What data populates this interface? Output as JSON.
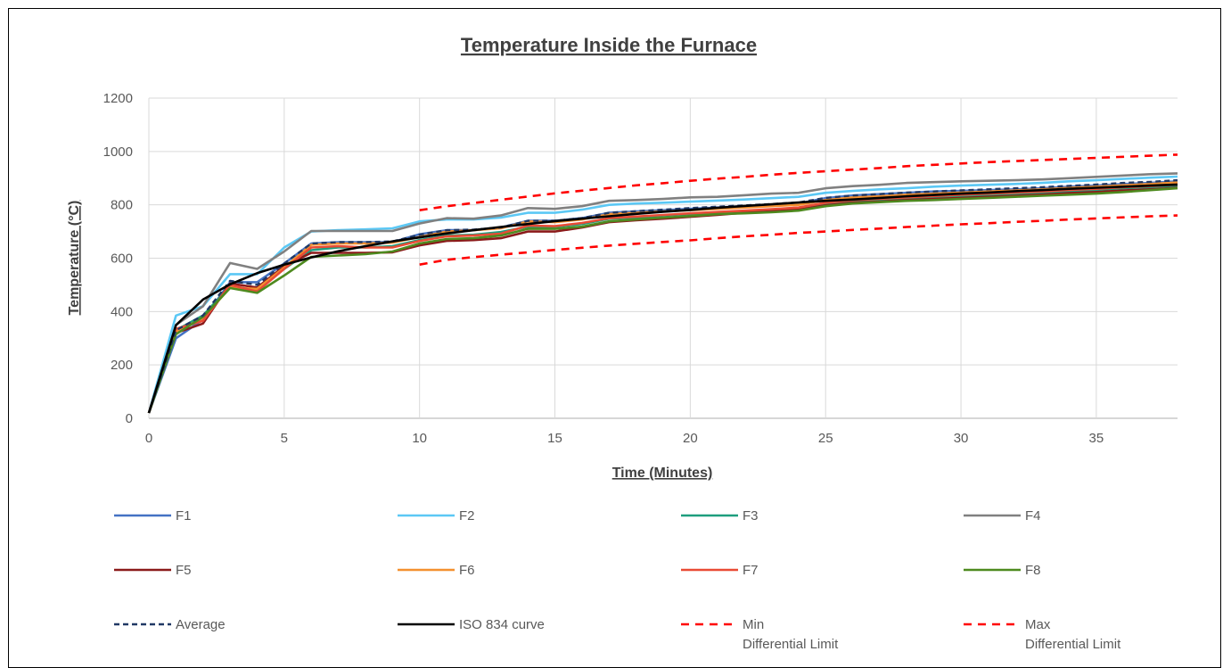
{
  "chart_data": {
    "type": "line",
    "title": "Temperature Inside the Furnace",
    "xlabel": "Time (Minutes)",
    "ylabel": "Temperature (°C)",
    "xlim": [
      0,
      38
    ],
    "ylim": [
      0,
      1200
    ],
    "x_ticks": [
      0,
      5,
      10,
      15,
      20,
      25,
      30,
      35
    ],
    "y_ticks": [
      0,
      200,
      400,
      600,
      800,
      1000,
      1200
    ],
    "grid": true,
    "legend_position": "bottom",
    "series": [
      {
        "name": "F1",
        "color": "#4472C4",
        "dash": "solid",
        "x": [
          0,
          1,
          2,
          3,
          4,
          5,
          6,
          7,
          8,
          9,
          10,
          11,
          12,
          13,
          14,
          15,
          16,
          17,
          18,
          19,
          20,
          21,
          22,
          23,
          24,
          25,
          26,
          27,
          28,
          29,
          30,
          31,
          32,
          33,
          34,
          35,
          36,
          37,
          38
        ],
        "y": [
          20,
          300,
          370,
          510,
          510,
          580,
          655,
          660,
          660,
          660,
          690,
          705,
          705,
          715,
          740,
          740,
          750,
          770,
          775,
          780,
          785,
          790,
          795,
          800,
          805,
          825,
          835,
          840,
          845,
          850,
          852,
          855,
          858,
          862,
          868,
          872,
          878,
          882,
          888
        ]
      },
      {
        "name": "F2",
        "color": "#5BC8F5",
        "dash": "solid",
        "x": [
          0,
          1,
          2,
          3,
          4,
          5,
          6,
          7,
          8,
          9,
          10,
          11,
          12,
          13,
          14,
          15,
          16,
          17,
          18,
          19,
          20,
          21,
          22,
          23,
          24,
          25,
          26,
          27,
          28,
          29,
          30,
          31,
          32,
          33,
          34,
          35,
          36,
          37,
          38
        ],
        "y": [
          20,
          385,
          420,
          540,
          540,
          640,
          700,
          705,
          708,
          712,
          738,
          745,
          745,
          752,
          770,
          770,
          782,
          800,
          805,
          808,
          812,
          816,
          820,
          825,
          830,
          845,
          852,
          858,
          862,
          868,
          872,
          875,
          878,
          882,
          888,
          892,
          897,
          902,
          906
        ]
      },
      {
        "name": "F3",
        "color": "#1E9E7E",
        "dash": "solid",
        "x": [
          0,
          1,
          2,
          3,
          4,
          5,
          6,
          7,
          8,
          9,
          10,
          11,
          12,
          13,
          14,
          15,
          16,
          17,
          18,
          19,
          20,
          21,
          22,
          23,
          24,
          25,
          26,
          27,
          28,
          29,
          30,
          31,
          32,
          33,
          34,
          35,
          36,
          37,
          38
        ],
        "y": [
          20,
          330,
          385,
          495,
          480,
          560,
          630,
          640,
          640,
          645,
          668,
          685,
          688,
          698,
          718,
          718,
          728,
          748,
          752,
          760,
          766,
          770,
          775,
          780,
          786,
          802,
          812,
          818,
          822,
          828,
          832,
          836,
          840,
          845,
          850,
          856,
          862,
          866,
          872
        ]
      },
      {
        "name": "F4",
        "color": "#808080",
        "dash": "solid",
        "x": [
          0,
          1,
          2,
          3,
          4,
          5,
          6,
          7,
          8,
          9,
          10,
          11,
          12,
          13,
          14,
          15,
          16,
          17,
          18,
          19,
          20,
          21,
          22,
          23,
          24,
          25,
          26,
          27,
          28,
          29,
          30,
          31,
          32,
          33,
          34,
          35,
          36,
          37,
          38
        ],
        "y": [
          20,
          350,
          420,
          582,
          560,
          625,
          702,
          702,
          702,
          702,
          730,
          750,
          748,
          760,
          788,
          785,
          795,
          815,
          818,
          822,
          828,
          830,
          836,
          842,
          845,
          862,
          870,
          875,
          882,
          885,
          888,
          890,
          892,
          895,
          900,
          905,
          910,
          915,
          918
        ]
      },
      {
        "name": "F5",
        "color": "#8B1A1A",
        "dash": "solid",
        "x": [
          0,
          1,
          2,
          3,
          4,
          5,
          6,
          7,
          8,
          9,
          10,
          11,
          12,
          13,
          14,
          15,
          16,
          17,
          18,
          19,
          20,
          21,
          22,
          23,
          24,
          25,
          26,
          27,
          28,
          29,
          30,
          31,
          32,
          33,
          34,
          35,
          36,
          37,
          38
        ],
        "y": [
          20,
          320,
          355,
          505,
          490,
          570,
          620,
          620,
          620,
          622,
          648,
          665,
          668,
          675,
          700,
          700,
          715,
          735,
          742,
          748,
          755,
          762,
          770,
          775,
          782,
          798,
          808,
          812,
          818,
          822,
          826,
          830,
          834,
          838,
          844,
          848,
          854,
          858,
          864
        ]
      },
      {
        "name": "F6",
        "color": "#F4902F",
        "dash": "solid",
        "x": [
          0,
          1,
          2,
          3,
          4,
          5,
          6,
          7,
          8,
          9,
          10,
          11,
          12,
          13,
          14,
          15,
          16,
          17,
          18,
          19,
          20,
          21,
          22,
          23,
          24,
          25,
          26,
          27,
          28,
          29,
          30,
          31,
          32,
          33,
          34,
          35,
          36,
          37,
          38
        ],
        "y": [
          20,
          325,
          375,
          490,
          485,
          565,
          650,
          655,
          655,
          658,
          680,
          700,
          705,
          712,
          738,
          735,
          745,
          765,
          770,
          775,
          780,
          785,
          790,
          795,
          800,
          818,
          828,
          832,
          838,
          842,
          846,
          850,
          854,
          858,
          864,
          868,
          873,
          878,
          884
        ]
      },
      {
        "name": "F7",
        "color": "#E94B35",
        "dash": "solid",
        "x": [
          0,
          1,
          2,
          3,
          4,
          5,
          6,
          7,
          8,
          9,
          10,
          11,
          12,
          13,
          14,
          15,
          16,
          17,
          18,
          19,
          20,
          21,
          22,
          23,
          24,
          25,
          26,
          27,
          28,
          29,
          30,
          31,
          32,
          33,
          34,
          35,
          36,
          37,
          38
        ],
        "y": [
          20,
          335,
          365,
          500,
          475,
          560,
          640,
          645,
          640,
          640,
          665,
          682,
          685,
          692,
          722,
          720,
          732,
          750,
          756,
          762,
          768,
          773,
          778,
          784,
          790,
          808,
          818,
          823,
          828,
          833,
          838,
          842,
          846,
          850,
          856,
          860,
          866,
          870,
          876
        ]
      },
      {
        "name": "F8",
        "color": "#4E8A1F",
        "dash": "solid",
        "x": [
          0,
          1,
          2,
          3,
          4,
          5,
          6,
          7,
          8,
          9,
          10,
          11,
          12,
          13,
          14,
          15,
          16,
          17,
          18,
          19,
          20,
          21,
          22,
          23,
          24,
          25,
          26,
          27,
          28,
          29,
          30,
          31,
          32,
          33,
          34,
          35,
          36,
          37,
          38
        ],
        "y": [
          20,
          315,
          380,
          488,
          470,
          535,
          605,
          610,
          615,
          625,
          655,
          672,
          675,
          685,
          710,
          710,
          718,
          738,
          745,
          752,
          758,
          765,
          768,
          772,
          778,
          795,
          805,
          810,
          815,
          818,
          822,
          826,
          830,
          834,
          838,
          842,
          848,
          855,
          862
        ]
      },
      {
        "name": "Average",
        "color": "#203864",
        "dash": "dashed",
        "x": [
          0,
          1,
          2,
          3,
          4,
          5,
          6,
          7,
          8,
          9,
          10,
          11,
          12,
          13,
          14,
          15,
          16,
          17,
          18,
          19,
          20,
          21,
          22,
          23,
          24,
          25,
          26,
          27,
          28,
          29,
          30,
          31,
          32,
          33,
          34,
          35,
          36,
          37,
          38
        ],
        "y": [
          20,
          330,
          385,
          515,
          500,
          580,
          655,
          660,
          660,
          663,
          688,
          705,
          707,
          715,
          740,
          740,
          750,
          770,
          776,
          782,
          788,
          793,
          798,
          803,
          809,
          826,
          835,
          840,
          846,
          850,
          854,
          858,
          862,
          866,
          871,
          876,
          882,
          886,
          892
        ]
      },
      {
        "name": "ISO 834 curve",
        "color": "#000000",
        "dash": "solid",
        "x": [
          0,
          1,
          2,
          3,
          4,
          5,
          6,
          7,
          8,
          9,
          10,
          11,
          12,
          13,
          14,
          15,
          16,
          17,
          18,
          19,
          20,
          21,
          22,
          23,
          24,
          25,
          26,
          27,
          28,
          29,
          30,
          31,
          32,
          33,
          34,
          35,
          36,
          37,
          38
        ],
        "y": [
          20,
          349,
          445,
          502,
          544,
          576,
          603,
          626,
          645,
          663,
          678,
          693,
          705,
          717,
          728,
          739,
          748,
          757,
          766,
          774,
          781,
          789,
          796,
          802,
          809,
          815,
          820,
          826,
          832,
          837,
          842,
          846,
          851,
          855,
          860,
          864,
          868,
          872,
          876
        ]
      },
      {
        "name": "Min\nDifferential Limit",
        "color": "#FF0000",
        "dash": "dashed",
        "x": [
          10,
          11,
          12,
          13,
          14,
          15,
          16,
          17,
          18,
          19,
          20,
          21,
          22,
          23,
          24,
          25,
          26,
          27,
          28,
          29,
          30,
          31,
          32,
          33,
          34,
          35,
          36,
          37,
          38
        ],
        "y": [
          576,
          594,
          604,
          613,
          622,
          631,
          639,
          647,
          654,
          661,
          667,
          675,
          682,
          688,
          695,
          700,
          706,
          711,
          717,
          722,
          727,
          731,
          736,
          740,
          745,
          749,
          753,
          757,
          760
        ]
      },
      {
        "name": "Max\nDifferential Limit",
        "color": "#FF0000",
        "dash": "dashed",
        "x": [
          10,
          11,
          12,
          13,
          14,
          15,
          16,
          17,
          18,
          19,
          20,
          21,
          22,
          23,
          24,
          25,
          26,
          27,
          28,
          29,
          30,
          31,
          32,
          33,
          34,
          35,
          36,
          37,
          38
        ],
        "y": [
          780,
          795,
          807,
          819,
          831,
          843,
          853,
          863,
          873,
          881,
          890,
          898,
          905,
          913,
          920,
          926,
          932,
          938,
          945,
          950,
          955,
          960,
          964,
          968,
          972,
          976,
          980,
          984,
          988
        ]
      }
    ]
  }
}
